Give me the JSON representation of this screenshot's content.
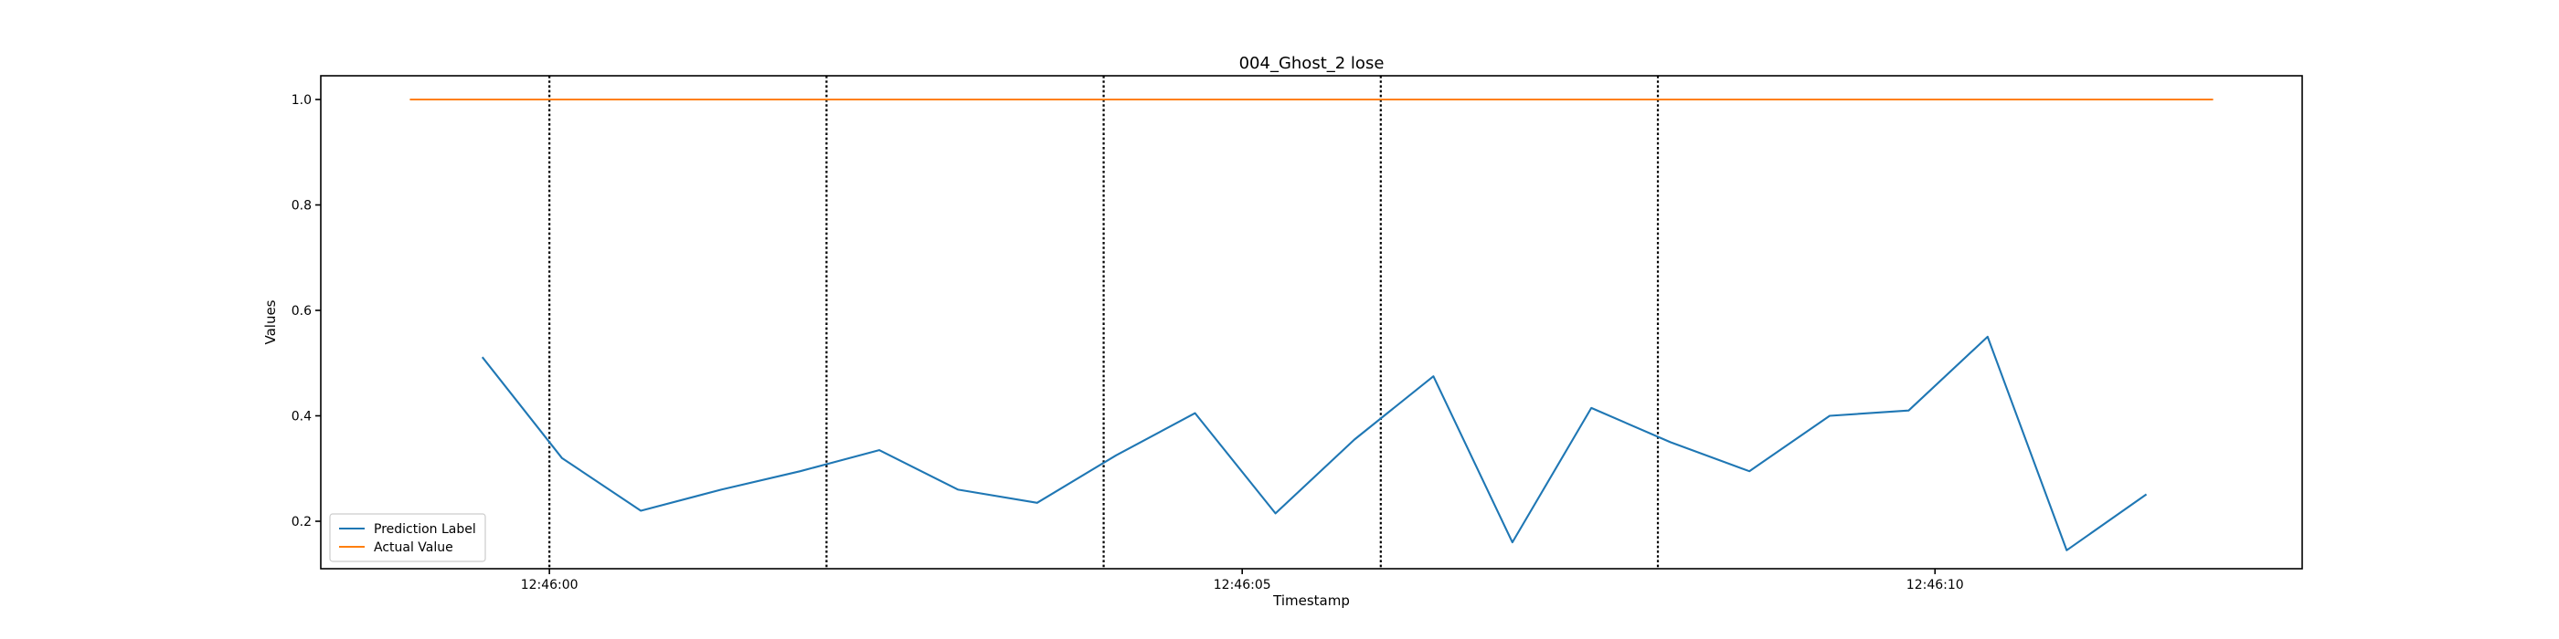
{
  "chart_data": {
    "type": "line",
    "title": "004_Ghost_2 lose",
    "xlabel": "Timestamp",
    "ylabel": "Values",
    "x_unit": "seconds after 12:46:00",
    "xlim": [
      -1.65,
      12.65
    ],
    "ylim": [
      0.11,
      1.045
    ],
    "x_ticks": [
      {
        "value": 0,
        "label": "12:46:00"
      },
      {
        "value": 5,
        "label": "12:46:05"
      },
      {
        "value": 10,
        "label": "12:46:10"
      }
    ],
    "y_ticks": [
      {
        "value": 0.2,
        "label": "0.2"
      },
      {
        "value": 0.4,
        "label": "0.4"
      },
      {
        "value": 0.6,
        "label": "0.6"
      },
      {
        "value": 0.8,
        "label": "0.8"
      },
      {
        "value": 1.0,
        "label": "1.0"
      }
    ],
    "vertical_lines": [
      0,
      2,
      4,
      6,
      8
    ],
    "series": [
      {
        "name": "Prediction Label",
        "color": "#1f77b4",
        "x": [
          -0.48,
          0.09,
          0.66,
          1.24,
          1.81,
          2.38,
          2.95,
          3.52,
          4.09,
          4.66,
          5.24,
          5.81,
          6.38,
          6.95,
          7.52,
          8.09,
          8.66,
          9.24,
          9.81,
          10.38,
          10.95,
          11.52
        ],
        "values": [
          0.51,
          0.32,
          0.22,
          0.26,
          0.295,
          0.335,
          0.26,
          0.235,
          0.325,
          0.405,
          0.215,
          0.355,
          0.475,
          0.16,
          0.415,
          0.35,
          0.295,
          0.4,
          0.41,
          0.55,
          0.145,
          0.25
        ]
      },
      {
        "name": "Actual Value",
        "color": "#ff7f0e",
        "x": [
          -1.0,
          12.0
        ],
        "values": [
          1.0,
          1.0
        ]
      }
    ],
    "legend": {
      "position": "lower-left",
      "entries": [
        "Prediction Label",
        "Actual Value"
      ]
    },
    "grid": false
  }
}
